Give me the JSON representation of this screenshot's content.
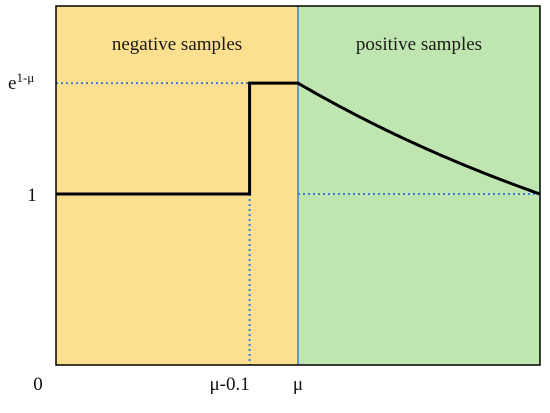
{
  "chart_data": {
    "type": "line",
    "regions": [
      {
        "label": "negative samples",
        "x_range": [
          "0",
          "mu"
        ],
        "color": "#fcdf8f"
      },
      {
        "label": "positive samples",
        "x_range": [
          "mu",
          "1"
        ],
        "color": "#bfe6b0"
      }
    ],
    "x_ticks": [
      {
        "label": "0",
        "value": 0
      },
      {
        "label": "μ-0.1",
        "value": 0.4
      },
      {
        "label": "μ",
        "value": 0.5
      }
    ],
    "y_ticks": [
      {
        "label": "1",
        "value": 1
      },
      {
        "label_base": "e",
        "label_sup": "1-μ",
        "value": 1.6487
      }
    ],
    "series": [
      {
        "style": "solid",
        "color": "#000000",
        "mu": 0.5,
        "description_points": [
          [
            0,
            1
          ],
          [
            0.4,
            1
          ],
          [
            0.4,
            1.6487
          ],
          [
            0.5,
            1.6487
          ],
          [
            0.55,
            1.5683
          ],
          [
            0.6,
            1.4918
          ],
          [
            0.65,
            1.4191
          ],
          [
            0.7,
            1.3499
          ],
          [
            0.75,
            1.284
          ],
          [
            0.8,
            1.2214
          ],
          [
            0.85,
            1.1618
          ],
          [
            0.9,
            1.1052
          ],
          [
            0.95,
            1.0513
          ],
          [
            1.0,
            1.0
          ]
        ]
      }
    ],
    "reference_lines_color": "#3b7dd8",
    "xlim": [
      0,
      1
    ],
    "ylim": [
      0,
      2.1
    ],
    "grid": false,
    "legend": "none"
  }
}
